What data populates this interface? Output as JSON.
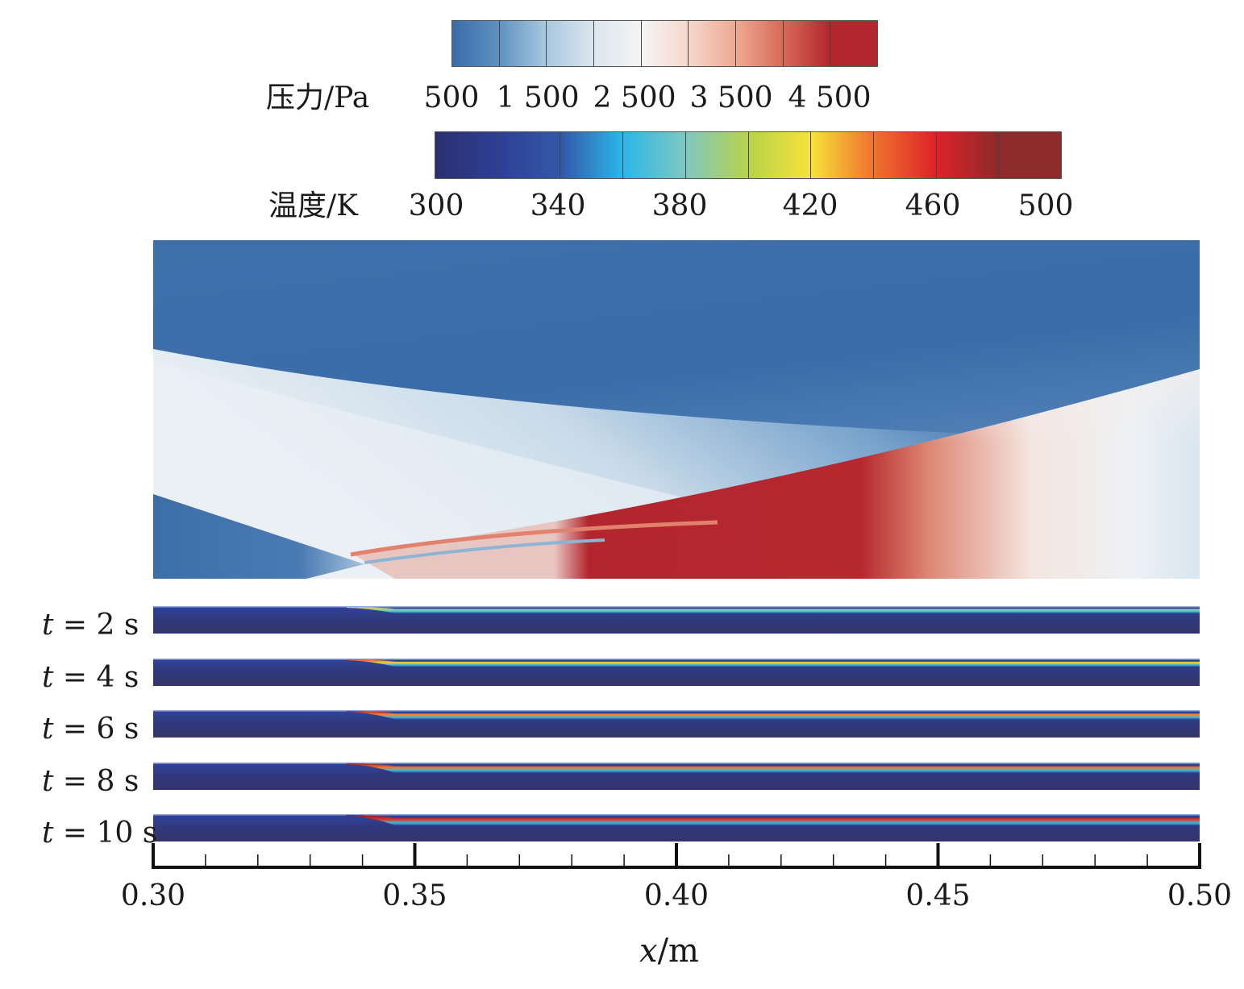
{
  "chart_data": {
    "type": "heatmap",
    "title": "",
    "xlabel": "x/m",
    "xlabel_var": "x",
    "xlabel_unit": "/m",
    "xlim": [
      0.3,
      0.5
    ],
    "x_ticks": [
      "0.30",
      "0.35",
      "0.40",
      "0.45",
      "0.50"
    ],
    "x_minor_step": 0.01,
    "colorbars": [
      {
        "name": "pressure",
        "label": "压力/Pa",
        "range": [
          0,
          5000
        ],
        "tick_labels": [
          "500",
          "1 500",
          "2 500",
          "3 500",
          "4 500"
        ],
        "tick_values": [
          500,
          1500,
          2500,
          3500,
          4500
        ],
        "segments": [
          "#3b6ba8",
          "#5f92c1",
          "#a8c8de",
          "#dbe6ef",
          "#f4f4f5",
          "#f6d8cc",
          "#eeaa92",
          "#d76a58",
          "#b3262e"
        ]
      },
      {
        "name": "temperature",
        "label": "温度/K",
        "range": [
          300,
          500
        ],
        "tick_labels": [
          "300",
          "340",
          "380",
          "420",
          "460",
          "500"
        ],
        "tick_values": [
          300,
          340,
          380,
          420,
          460,
          500
        ],
        "segments": [
          "#2c2f6e",
          "#2e3f96",
          "#3358a8",
          "#2bb6e8",
          "#7ec8c0",
          "#b8d34a",
          "#f7e23a",
          "#f0722d",
          "#de2228",
          "#8c2b2a"
        ]
      }
    ],
    "panels": [
      {
        "name": "pressure-field",
        "field": "pressure"
      },
      {
        "name": "temperature-strip",
        "field": "temperature",
        "time_label": "t = 2 s",
        "t": 2,
        "peak_band_k": 430
      },
      {
        "name": "temperature-strip",
        "field": "temperature",
        "time_label": "t = 4 s",
        "t": 4,
        "peak_band_k": 470
      },
      {
        "name": "temperature-strip",
        "field": "temperature",
        "time_label": "t = 6 s",
        "t": 6,
        "peak_band_k": 490
      },
      {
        "name": "temperature-strip",
        "field": "temperature",
        "time_label": "t = 8 s",
        "t": 8,
        "peak_band_k": 495
      },
      {
        "name": "temperature-strip",
        "field": "temperature",
        "time_label": "t = 10 s",
        "t": 10,
        "peak_band_k": 500
      }
    ],
    "strip_labels": [
      {
        "var": "t",
        "rest": " = 2 s"
      },
      {
        "var": "t",
        "rest": " = 4 s"
      },
      {
        "var": "t",
        "rest": " = 6 s"
      },
      {
        "var": "t",
        "rest": " = 8 s"
      },
      {
        "var": "t",
        "rest": " = 10 s"
      }
    ]
  }
}
